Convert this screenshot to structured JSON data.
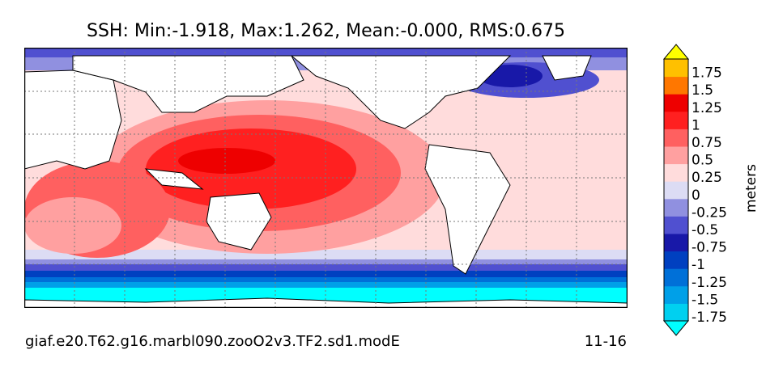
{
  "title": "SSH: Min:-1.918, Max:1.262, Mean:-0.000, RMS:0.675",
  "footer": {
    "run_name": "giaf.e20.T62.g16.marbl090.zooO2v3.TF2.sd1.modE",
    "date": "11-16"
  },
  "chart_data": {
    "type": "heatmap",
    "title": "SSH: Min:-1.918, Max:1.262, Mean:-0.000, RMS:0.675",
    "variable": "SSH",
    "stats": {
      "min": -1.918,
      "max": 1.262,
      "mean": -0.0,
      "rms": 0.675
    },
    "projection": "global lat-lon map, grid on",
    "colorbar": {
      "label": "meters",
      "extend": "both",
      "levels": [
        -2.0,
        -1.75,
        -1.5,
        -1.25,
        -1.0,
        -0.75,
        -0.5,
        -0.25,
        0,
        0.25,
        0.5,
        0.75,
        1,
        1.25,
        1.5,
        1.75,
        2.0
      ],
      "tick_labels": [
        "1.75",
        "1.5",
        "1.25",
        "1",
        "0.75",
        "0.5",
        "0.25",
        "0",
        "-0.25",
        "-0.5",
        "-0.75",
        "-1",
        "-1.25",
        "-1.5",
        "-1.75"
      ],
      "colors": [
        "#00ffff",
        "#00d0f0",
        "#00a0e8",
        "#0070d8",
        "#0040c0",
        "#1818a8",
        "#5050d0",
        "#9090e0",
        "#dcdcf4",
        "#ffdcdc",
        "#ffa0a0",
        "#ff6060",
        "#ff2020",
        "#ee0000",
        "#ff7700",
        "#ffc000",
        "#ffff00"
      ]
    }
  }
}
